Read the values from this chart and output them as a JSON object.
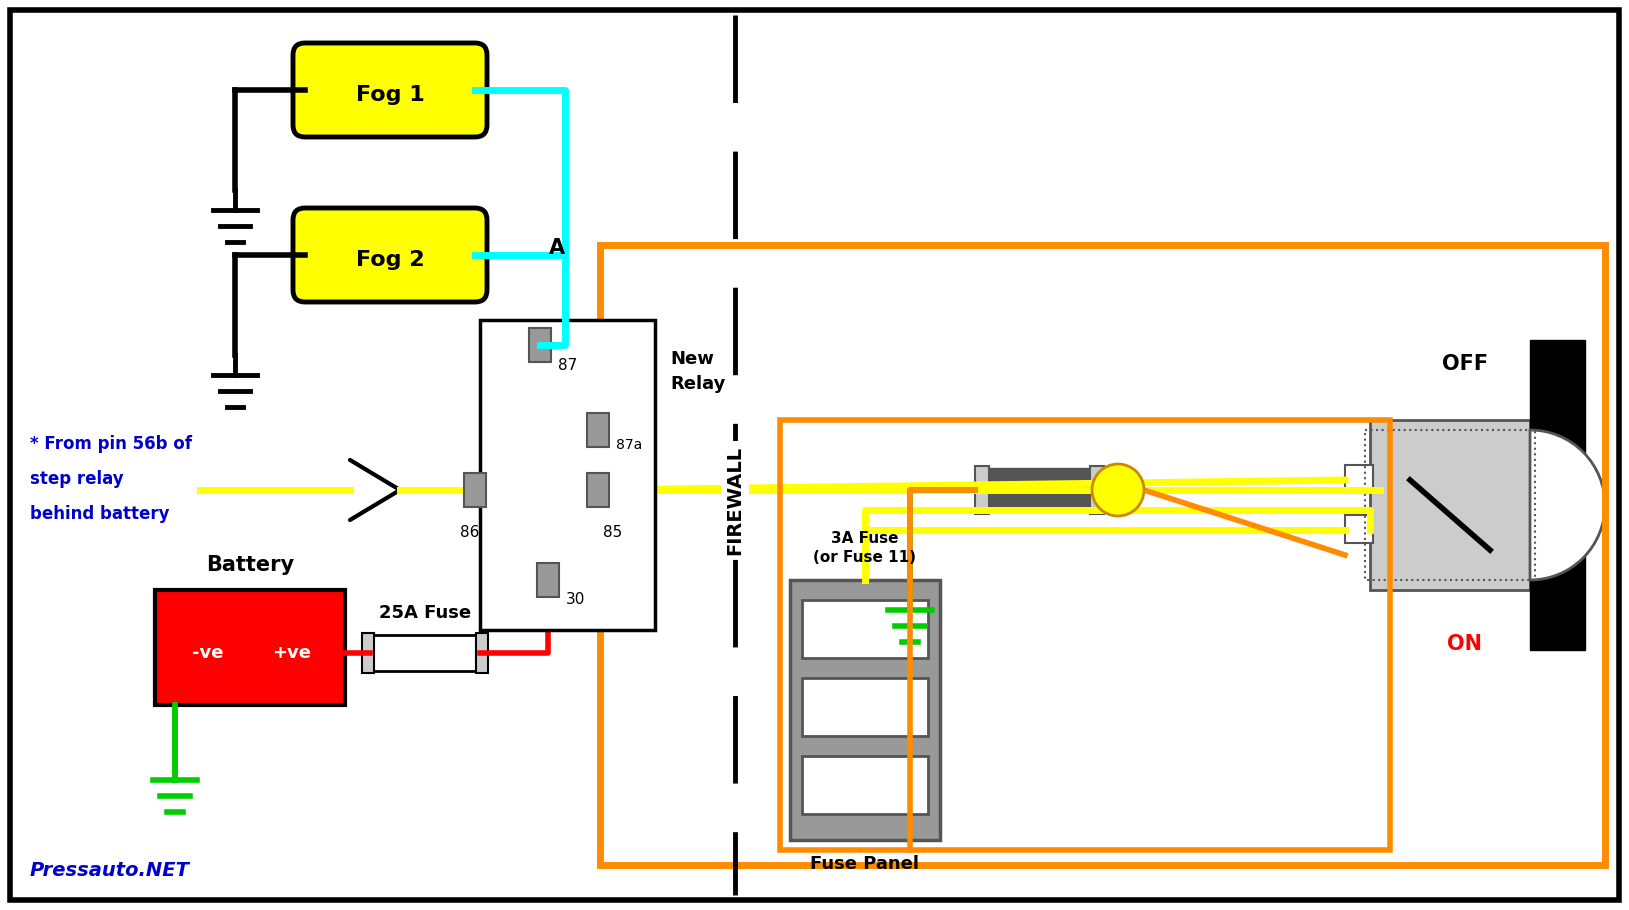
{
  "bg_color": "#ffffff",
  "colors": {
    "black": "#000000",
    "yellow": "#ffff00",
    "cyan": "#00ffff",
    "red": "#ff0000",
    "green": "#00cc00",
    "orange": "#ff8c00",
    "blue": "#0000cd",
    "gray": "#999999",
    "light_gray": "#cccccc",
    "dark_gray": "#555555",
    "white": "#ffffff"
  },
  "watermark": "Pressauto.NET",
  "fog1_label": "Fog 1",
  "fog2_label": "Fog 2",
  "battery_label": "Battery",
  "fuse_25a": "25A Fuse",
  "fuse_3a": "3A Fuse\n(or Fuse 11)",
  "fuse_panel_label": "Fuse Panel",
  "new_relay": "New\nRelay",
  "label_a": "A",
  "label_off": "OFF",
  "label_on": "ON",
  "label_86": "86",
  "label_87": "87",
  "label_87a": "87a",
  "label_85": "85",
  "label_30": "30",
  "step_relay_line1": "* From pin 56b of",
  "step_relay_line2": "step relay",
  "step_relay_line3": "behind battery",
  "firewall_label": "FIREWALL"
}
